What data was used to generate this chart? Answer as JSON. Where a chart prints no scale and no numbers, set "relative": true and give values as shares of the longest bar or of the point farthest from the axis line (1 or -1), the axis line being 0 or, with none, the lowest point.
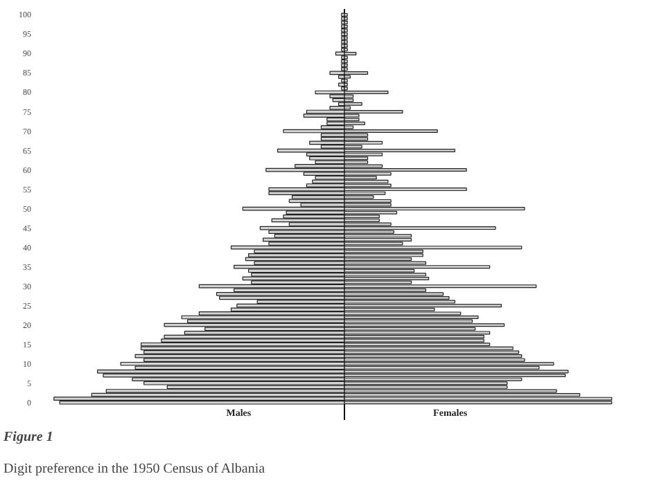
{
  "chart_data": {
    "type": "bar",
    "orientation": "horizontal",
    "relative": true,
    "tick_labels": "y",
    "title": "Figure 1",
    "subtitle": "Digit preference in the 1950 Census of Albania",
    "categories": [
      "100",
      null,
      null,
      null,
      null,
      "95",
      null,
      null,
      null,
      null,
      "90",
      null,
      null,
      null,
      null,
      "85",
      null,
      null,
      null,
      null,
      "80",
      null,
      null,
      null,
      null,
      "75",
      null,
      null,
      null,
      null,
      "70",
      null,
      null,
      null,
      null,
      "65",
      null,
      null,
      null,
      null,
      "60",
      null,
      null,
      null,
      null,
      "55",
      null,
      null,
      null,
      null,
      "50",
      null,
      null,
      null,
      null,
      "45",
      null,
      null,
      null,
      null,
      "40",
      null,
      null,
      null,
      null,
      "35",
      null,
      null,
      null,
      null,
      "30",
      null,
      null,
      null,
      null,
      "25",
      null,
      null,
      null,
      null,
      "20",
      null,
      null,
      null,
      null,
      "15",
      null,
      null,
      null,
      null,
      "10",
      null,
      null,
      null,
      null,
      "5",
      null,
      null,
      null,
      null,
      "0"
    ],
    "series": [
      {
        "name": "Males",
        "color": "#d4d4d4",
        "values": [
          -0.01,
          -0.01,
          -0.01,
          -0.01,
          -0.01,
          -0.01,
          -0.01,
          -0.01,
          -0.01,
          -0.01,
          -0.03,
          -0.01,
          -0.01,
          -0.01,
          -0.01,
          -0.05,
          -0.02,
          -0.01,
          -0.02,
          -0.01,
          -0.1,
          -0.05,
          -0.04,
          -0.02,
          -0.05,
          -0.13,
          -0.14,
          -0.06,
          -0.06,
          -0.08,
          -0.21,
          -0.08,
          -0.08,
          -0.12,
          -0.08,
          -0.23,
          -0.13,
          -0.12,
          -0.1,
          -0.17,
          -0.27,
          -0.14,
          -0.1,
          -0.11,
          -0.13,
          -0.26,
          -0.26,
          -0.18,
          -0.19,
          -0.15,
          -0.35,
          -0.2,
          -0.21,
          -0.25,
          -0.19,
          -0.29,
          -0.26,
          -0.24,
          -0.28,
          -0.26,
          -0.39,
          -0.31,
          -0.33,
          -0.34,
          -0.31,
          -0.38,
          -0.33,
          -0.32,
          -0.35,
          -0.32,
          -0.5,
          -0.38,
          -0.44,
          -0.43,
          -0.3,
          -0.37,
          -0.39,
          -0.5,
          -0.56,
          -0.54,
          -0.62,
          -0.48,
          -0.55,
          -0.62,
          -0.63,
          -0.7,
          -0.7,
          -0.69,
          -0.72,
          -0.69,
          -0.77,
          -0.72,
          -0.85,
          -0.83,
          -0.73,
          -0.69,
          -0.61,
          -0.82,
          -0.87,
          -1,
          -0.98
        ]
      },
      {
        "name": "Females",
        "color": "#d4d4d4",
        "values": [
          0.01,
          0.01,
          0.01,
          0.01,
          0.01,
          0.01,
          0.01,
          0.01,
          0.01,
          0.01,
          0.04,
          0.01,
          0.01,
          0.01,
          0.01,
          0.08,
          0.02,
          0.01,
          0.01,
          0.01,
          0.15,
          0.03,
          0.03,
          0.06,
          0.02,
          0.2,
          0.05,
          0.05,
          0.07,
          0.03,
          0.32,
          0.08,
          0.08,
          0.13,
          0.06,
          0.38,
          0.13,
          0.08,
          0.08,
          0.13,
          0.42,
          0.16,
          0.11,
          0.15,
          0.16,
          0.42,
          0.14,
          0.1,
          0.16,
          0.16,
          0.62,
          0.18,
          0.12,
          0.12,
          0.16,
          0.52,
          0.17,
          0.23,
          0.23,
          0.2,
          0.61,
          0.27,
          0.27,
          0.23,
          0.28,
          0.5,
          0.24,
          0.28,
          0.29,
          0.23,
          0.66,
          0.28,
          0.34,
          0.36,
          0.38,
          0.54,
          0.31,
          0.4,
          0.46,
          0.44,
          0.55,
          0.45,
          0.5,
          0.48,
          0.48,
          0.5,
          0.58,
          0.6,
          0.61,
          0.62,
          0.72,
          0.67,
          0.77,
          0.76,
          0.61,
          0.56,
          0.56,
          0.73,
          0.81,
          0.92,
          0.92
        ]
      }
    ]
  }
}
